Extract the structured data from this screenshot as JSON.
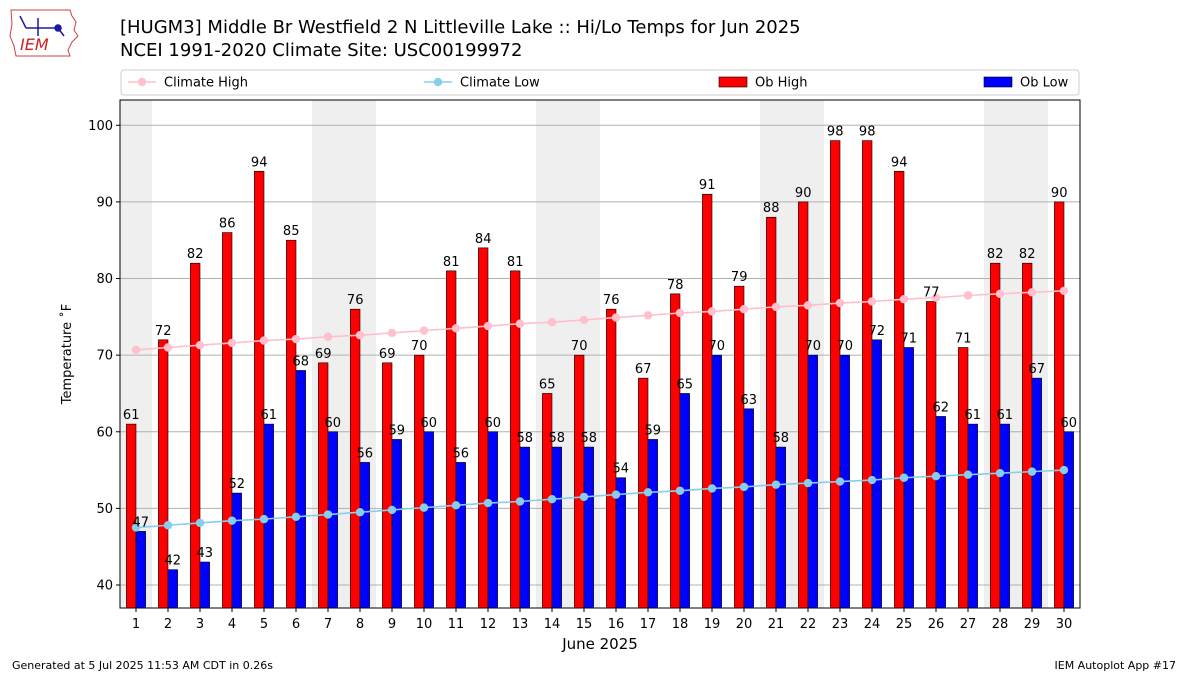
{
  "header": {
    "logo_text": "IEM",
    "title_line1": "[HUGM3] Middle Br Westfield 2 N Littleville Lake :: Hi/Lo Temps for Jun 2025",
    "title_line2": "NCEI 1991-2020 Climate Site: USC00199972"
  },
  "footer": {
    "generated": "Generated at 5 Jul 2025 11:53 AM CDT in 0.26s",
    "app": "IEM Autoplot App #17"
  },
  "colors": {
    "ob_high": "#ff0000",
    "ob_low": "#0000ff",
    "climate_high": "#ffc0cb",
    "climate_low": "#87ceeb",
    "weekend_band": "#efefef",
    "grid": "#b0b0b0"
  },
  "chart_data": {
    "type": "bar",
    "xlabel": "June 2025",
    "ylabel": "Temperature ˚F",
    "ylim": [
      37,
      103.3
    ],
    "yticks": [
      40,
      50,
      60,
      70,
      80,
      90,
      100
    ],
    "grid": "horizontal",
    "legend_position": "top",
    "legend": [
      "Climate High",
      "Climate Low",
      "Ob High",
      "Ob Low"
    ],
    "categories": [
      "1",
      "2",
      "3",
      "4",
      "5",
      "6",
      "7",
      "8",
      "9",
      "10",
      "11",
      "12",
      "13",
      "14",
      "15",
      "16",
      "17",
      "18",
      "19",
      "20",
      "21",
      "22",
      "23",
      "24",
      "25",
      "26",
      "27",
      "28",
      "29",
      "30"
    ],
    "shaded_days": [
      1,
      7,
      8,
      14,
      15,
      21,
      22,
      28,
      29
    ],
    "series": [
      {
        "name": "Ob High",
        "kind": "bar",
        "values": [
          61,
          72,
          82,
          86,
          94,
          85,
          69,
          76,
          69,
          70,
          81,
          84,
          81,
          65,
          70,
          76,
          67,
          78,
          91,
          79,
          88,
          90,
          98,
          98,
          94,
          77,
          71,
          82,
          82,
          90
        ]
      },
      {
        "name": "Ob Low",
        "kind": "bar",
        "values": [
          47,
          42,
          43,
          52,
          61,
          68,
          60,
          56,
          59,
          60,
          56,
          60,
          58,
          58,
          58,
          54,
          59,
          65,
          70,
          63,
          58,
          70,
          70,
          72,
          71,
          62,
          61,
          61,
          67,
          60
        ]
      },
      {
        "name": "Climate High",
        "kind": "line",
        "values": [
          70.7,
          71.0,
          71.3,
          71.6,
          71.9,
          72.1,
          72.4,
          72.6,
          72.9,
          73.2,
          73.5,
          73.8,
          74.1,
          74.3,
          74.6,
          74.9,
          75.2,
          75.5,
          75.7,
          76.0,
          76.3,
          76.5,
          76.8,
          77.0,
          77.3,
          77.5,
          77.8,
          78.0,
          78.2,
          78.4
        ]
      },
      {
        "name": "Climate Low",
        "kind": "line",
        "values": [
          47.5,
          47.8,
          48.1,
          48.4,
          48.6,
          48.9,
          49.2,
          49.5,
          49.8,
          50.1,
          50.4,
          50.7,
          50.9,
          51.2,
          51.5,
          51.8,
          52.1,
          52.3,
          52.6,
          52.8,
          53.1,
          53.3,
          53.5,
          53.7,
          54.0,
          54.2,
          54.4,
          54.6,
          54.8,
          55.0
        ]
      }
    ]
  }
}
